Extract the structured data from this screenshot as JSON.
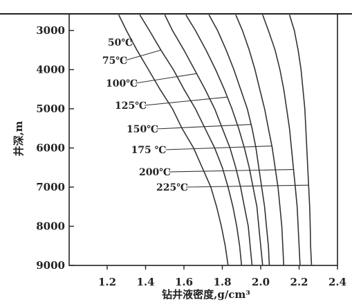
{
  "chart_data": {
    "type": "line",
    "xlabel": "钻井液密度,g/cm³",
    "ylabel": "井深,m",
    "xlim": [
      1.0,
      2.5
    ],
    "ylim": [
      2600,
      9000
    ],
    "y_inverted": true,
    "grid": false,
    "x_ticks": [
      "1.2",
      "1.4",
      "1.6",
      "1.8",
      "2.0",
      "2.2",
      "2.4"
    ],
    "y_ticks": [
      "3000",
      "4000",
      "5000",
      "6000",
      "7000",
      "8000",
      "9000"
    ],
    "series": [
      {
        "name": "50℃",
        "points": [
          [
            1.26,
            2600
          ],
          [
            1.3,
            3000
          ],
          [
            1.355,
            3500
          ],
          [
            1.415,
            4000
          ],
          [
            1.475,
            4500
          ],
          [
            1.54,
            5000
          ],
          [
            1.59,
            5500
          ],
          [
            1.65,
            6000
          ],
          [
            1.695,
            6500
          ],
          [
            1.74,
            7000
          ],
          [
            1.77,
            7500
          ],
          [
            1.795,
            8000
          ],
          [
            1.815,
            8500
          ],
          [
            1.83,
            9000
          ]
        ]
      },
      {
        "name": "75℃",
        "points": [
          [
            1.37,
            2600
          ],
          [
            1.42,
            3000
          ],
          [
            1.48,
            3500
          ],
          [
            1.545,
            4000
          ],
          [
            1.6,
            4500
          ],
          [
            1.66,
            5000
          ],
          [
            1.71,
            5500
          ],
          [
            1.76,
            6000
          ],
          [
            1.8,
            6500
          ],
          [
            1.83,
            7000
          ],
          [
            1.855,
            7500
          ],
          [
            1.875,
            8000
          ],
          [
            1.89,
            8500
          ],
          [
            1.9,
            9000
          ]
        ]
      },
      {
        "name": "100℃",
        "points": [
          [
            1.5,
            2600
          ],
          [
            1.54,
            3000
          ],
          [
            1.6,
            3500
          ],
          [
            1.655,
            4000
          ],
          [
            1.71,
            4500
          ],
          [
            1.76,
            5000
          ],
          [
            1.8,
            5500
          ],
          [
            1.84,
            6000
          ],
          [
            1.87,
            6500
          ],
          [
            1.895,
            7000
          ],
          [
            1.915,
            7500
          ],
          [
            1.935,
            8000
          ],
          [
            1.945,
            8500
          ],
          [
            1.955,
            9000
          ]
        ]
      },
      {
        "name": "125℃",
        "points": [
          [
            1.61,
            2600
          ],
          [
            1.66,
            3000
          ],
          [
            1.715,
            3500
          ],
          [
            1.765,
            4000
          ],
          [
            1.81,
            4500
          ],
          [
            1.85,
            5000
          ],
          [
            1.885,
            5500
          ],
          [
            1.915,
            6000
          ],
          [
            1.94,
            6500
          ],
          [
            1.96,
            7000
          ],
          [
            1.98,
            7500
          ],
          [
            1.99,
            8000
          ],
          [
            2.0,
            8500
          ],
          [
            2.01,
            9000
          ]
        ]
      },
      {
        "name": "150℃",
        "points": [
          [
            1.73,
            2600
          ],
          [
            1.775,
            3000
          ],
          [
            1.82,
            3500
          ],
          [
            1.86,
            4000
          ],
          [
            1.895,
            4500
          ],
          [
            1.93,
            5000
          ],
          [
            1.955,
            5500
          ],
          [
            1.975,
            6000
          ],
          [
            1.99,
            6500
          ],
          [
            2.005,
            7000
          ],
          [
            2.02,
            7500
          ],
          [
            2.03,
            8000
          ],
          [
            2.04,
            8500
          ],
          [
            2.045,
            9000
          ]
        ]
      },
      {
        "name": "175℃",
        "points": [
          [
            1.87,
            2600
          ],
          [
            1.905,
            3000
          ],
          [
            1.94,
            3500
          ],
          [
            1.97,
            4000
          ],
          [
            1.995,
            4500
          ],
          [
            2.02,
            5000
          ],
          [
            2.04,
            5500
          ],
          [
            2.06,
            6000
          ],
          [
            2.075,
            6500
          ],
          [
            2.09,
            7000
          ],
          [
            2.1,
            7500
          ],
          [
            2.11,
            8000
          ],
          [
            2.115,
            8500
          ],
          [
            2.12,
            9000
          ]
        ]
      },
      {
        "name": "200℃",
        "points": [
          [
            2.01,
            2600
          ],
          [
            2.04,
            3000
          ],
          [
            2.075,
            3500
          ],
          [
            2.1,
            4000
          ],
          [
            2.12,
            4500
          ],
          [
            2.135,
            5000
          ],
          [
            2.15,
            5500
          ],
          [
            2.16,
            6000
          ],
          [
            2.17,
            6500
          ],
          [
            2.18,
            7000
          ],
          [
            2.19,
            7500
          ],
          [
            2.195,
            8000
          ],
          [
            2.2,
            8500
          ],
          [
            2.205,
            9000
          ]
        ]
      },
      {
        "name": "225℃",
        "points": [
          [
            2.15,
            2600
          ],
          [
            2.175,
            3000
          ],
          [
            2.195,
            3500
          ],
          [
            2.21,
            4000
          ],
          [
            2.22,
            4500
          ],
          [
            2.23,
            5000
          ],
          [
            2.235,
            5500
          ],
          [
            2.24,
            6000
          ],
          [
            2.245,
            6500
          ],
          [
            2.25,
            7000
          ],
          [
            2.255,
            7500
          ],
          [
            2.258,
            8000
          ],
          [
            2.26,
            8500
          ],
          [
            2.265,
            9000
          ]
        ]
      }
    ],
    "labels": [
      {
        "text": "50℃",
        "series": "50℃",
        "y": 3200
      },
      {
        "text": "75℃",
        "series": "75℃",
        "y": 3500
      },
      {
        "text": "100℃",
        "series": "100℃",
        "y": 4100
      },
      {
        "text": "125℃",
        "series": "125℃",
        "y": 4700
      },
      {
        "text": "150℃",
        "series": "150℃",
        "y": 5400
      },
      {
        "text": "175 ℃",
        "series": "175℃",
        "y": 5950
      },
      {
        "text": "200℃",
        "series": "200℃",
        "y": 6550
      },
      {
        "text": "225℃",
        "series": "225℃",
        "y": 6950
      }
    ]
  }
}
